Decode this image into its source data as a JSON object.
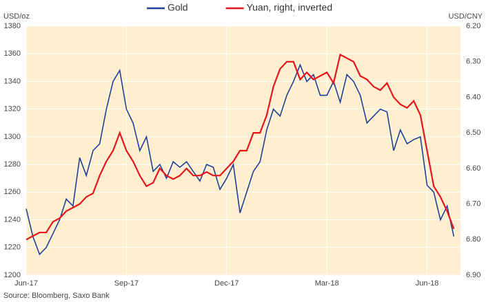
{
  "chart_data": {
    "type": "line",
    "legend": "top",
    "grid": true,
    "ylabel": "USD/oz",
    "y2label": "USD/CNY",
    "source": "Source: Bloomberg, Saxo Bank",
    "y2_inverted": true,
    "xlim": [
      0,
      13
    ],
    "xticks": [
      {
        "value": 0,
        "label": "Jun-17"
      },
      {
        "value": 3,
        "label": "Sep-17"
      },
      {
        "value": 6,
        "label": "Dec-17"
      },
      {
        "value": 9,
        "label": "Mar-18"
      },
      {
        "value": 12,
        "label": "Jun-18"
      }
    ],
    "ylim": [
      1200,
      1380
    ],
    "yticks": [
      1200,
      1220,
      1240,
      1260,
      1280,
      1300,
      1320,
      1340,
      1360,
      1380
    ],
    "y2lim": [
      6.2,
      6.9
    ],
    "y2ticks": [
      {
        "value": 6.2,
        "label": "6.20"
      },
      {
        "value": 6.3,
        "label": "6.30"
      },
      {
        "value": 6.4,
        "label": "6.40"
      },
      {
        "value": 6.5,
        "label": "6.50"
      },
      {
        "value": 6.6,
        "label": "6.60"
      },
      {
        "value": 6.7,
        "label": "6.70"
      },
      {
        "value": 6.8,
        "label": "6.80"
      },
      {
        "value": 6.9,
        "label": "6.90"
      }
    ],
    "x": [
      0,
      0.2,
      0.4,
      0.6,
      0.8,
      1,
      1.2,
      1.4,
      1.6,
      1.8,
      2,
      2.2,
      2.4,
      2.6,
      2.8,
      3,
      3.2,
      3.4,
      3.6,
      3.8,
      4,
      4.2,
      4.4,
      4.6,
      4.8,
      5,
      5.2,
      5.4,
      5.6,
      5.8,
      6,
      6.2,
      6.4,
      6.6,
      6.8,
      7,
      7.2,
      7.4,
      7.6,
      7.8,
      8,
      8.2,
      8.4,
      8.6,
      8.8,
      9,
      9.2,
      9.4,
      9.6,
      9.8,
      10,
      10.2,
      10.4,
      10.6,
      10.8,
      11,
      11.2,
      11.4,
      11.6,
      11.8,
      12,
      12.2,
      12.4,
      12.6,
      12.8
    ],
    "series": [
      {
        "name": "Gold",
        "color": "#1f3f99",
        "values": [
          1248,
          1228,
          1215,
          1220,
          1230,
          1240,
          1255,
          1250,
          1285,
          1272,
          1290,
          1295,
          1320,
          1340,
          1348,
          1320,
          1310,
          1290,
          1300,
          1275,
          1280,
          1270,
          1282,
          1278,
          1282,
          1275,
          1268,
          1280,
          1278,
          1262,
          1270,
          1280,
          1245,
          1260,
          1275,
          1282,
          1305,
          1320,
          1315,
          1330,
          1340,
          1352,
          1340,
          1345,
          1330,
          1330,
          1340,
          1325,
          1345,
          1340,
          1330,
          1310,
          1315,
          1320,
          1318,
          1290,
          1305,
          1295,
          1298,
          1300,
          1265,
          1260,
          1240,
          1250,
          1228
        ]
      },
      {
        "name": "Yuan, right, inverted",
        "color": "#e8141b",
        "axis": "y2",
        "values": [
          6.8,
          6.79,
          6.78,
          6.78,
          6.75,
          6.74,
          6.72,
          6.71,
          6.7,
          6.68,
          6.67,
          6.62,
          6.58,
          6.55,
          6.5,
          6.55,
          6.58,
          6.62,
          6.65,
          6.64,
          6.6,
          6.62,
          6.63,
          6.62,
          6.6,
          6.62,
          6.62,
          6.61,
          6.62,
          6.62,
          6.6,
          6.58,
          6.55,
          6.55,
          6.5,
          6.5,
          6.45,
          6.37,
          6.32,
          6.3,
          6.3,
          6.35,
          6.33,
          6.35,
          6.34,
          6.33,
          6.36,
          6.28,
          6.29,
          6.3,
          6.34,
          6.35,
          6.37,
          6.38,
          6.36,
          6.4,
          6.42,
          6.43,
          6.41,
          6.45,
          6.55,
          6.65,
          6.68,
          6.72,
          6.77
        ]
      }
    ]
  }
}
